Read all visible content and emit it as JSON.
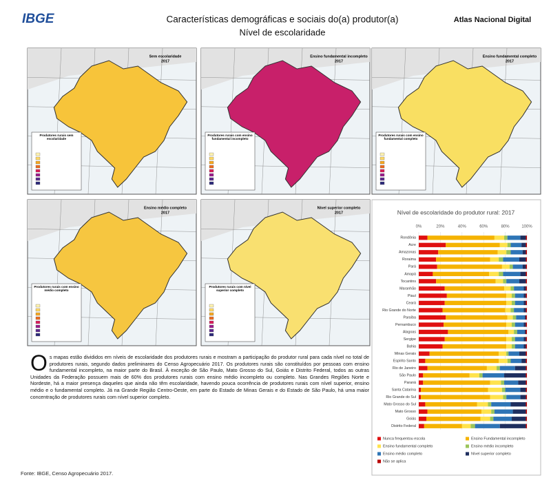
{
  "header": {
    "logo": "IBGE",
    "title": "Características demográficas e sociais do(a) produtor(a)",
    "subtitle": "Nível de escolaridade",
    "brand": "Atlas Nacional Digital"
  },
  "maps": [
    {
      "title": "Sem escolaridade",
      "year": "2017",
      "legend_title": "Produtores rurais sem escolaridade",
      "color": "#f7c43a"
    },
    {
      "title": "Ensino fundamental incompleto",
      "year": "2017",
      "legend_title": "Produtores rurais com ensino fundamental incompleto",
      "color": "#c8206a"
    },
    {
      "title": "Ensino fundamental completo",
      "year": "2017",
      "legend_title": "Produtores rurais com ensino fundamental completo",
      "color": "#f9df62"
    },
    {
      "title": "Ensino médio completo",
      "year": "2017",
      "legend_title": "Produtores rurais com ensino médio completo",
      "color": "#f6c640"
    },
    {
      "title": "Nível superior completo",
      "year": "2017",
      "legend_title": "Produtores rurais com nível superior completo",
      "color": "#f9e070"
    }
  ],
  "text": "Os mapas estão divididos em níveis de escolaridade dos produtores rurais e mostram a participação do produtor rural para cada nível no total de produtores rurais, segundo dados preliminares do Censo Agropecuário 2017. Os produtores rurais são constituídos por pessoas com ensino fundamental incompleto, na maior parte do Brasil. À exceção de São Paulo, Mato Grosso do Sul, Goiás e Distrito Federal, todos as outras Unidades da Federação possuem mais de 60% dos produtores rurais com ensino médio incompleto ou completo. Nas Grandes Regiões Norte e Nordeste, há a maior presença daqueles que ainda não têm escolaridade, havendo pouca ocorrência de produtores rurais com nível superior, ensino médio e o fundamental completo. Já na Grande Região Centro-Oeste, em parte do Estado de Minas Gerais e do Estado de São Paulo, há uma maior concentração de produtores rurais com nível superior completo.",
  "source": "Fonte: IBGE, Censo Agropecuário 2017.",
  "chart_data": {
    "type": "stacked_bar_horizontal",
    "title": "Nível de escolaridade do produtor rural: 2017",
    "categories": [
      "Rondônia",
      "Acre",
      "Amazonas",
      "Roraima",
      "Pará",
      "Amapá",
      "Tocantins",
      "Maranhão",
      "Piauí",
      "Ceará",
      "Rio Grande do Norte",
      "Paraíba",
      "Pernambuco",
      "Alagoas",
      "Sergipe",
      "Bahia",
      "Minas Gerais",
      "Espírito Santo",
      "Rio de Janeiro",
      "São Paulo",
      "Paraná",
      "Santa Catarina",
      "Rio Grande do Sul",
      "Mato Grosso do Sul",
      "Mato Grosso",
      "Goiás",
      "Distrito Federal"
    ],
    "series": [
      {
        "name": "Nunca frequentou escola",
        "color": "#e01010",
        "values": [
          8,
          25,
          18,
          16,
          17,
          13,
          16,
          24,
          26,
          24,
          22,
          25,
          23,
          27,
          24,
          22,
          10,
          6,
          8,
          4,
          4,
          2,
          2,
          6,
          8,
          7,
          5
        ]
      },
      {
        "name": "Ensino Fundamental incompleto",
        "color": "#f5b300",
        "values": [
          62,
          50,
          55,
          50,
          60,
          52,
          55,
          55,
          55,
          57,
          58,
          57,
          58,
          56,
          57,
          59,
          64,
          68,
          55,
          43,
          62,
          62,
          64,
          48,
          50,
          50,
          35
        ]
      },
      {
        "name": "Ensino fundamental completo",
        "color": "#ffe34d",
        "values": [
          9,
          7,
          8,
          8,
          7,
          9,
          7,
          6,
          5,
          5,
          5,
          5,
          5,
          5,
          5,
          5,
          7,
          8,
          9,
          9,
          10,
          13,
          12,
          10,
          9,
          9,
          8
        ]
      },
      {
        "name": "Ensino médio incompleto",
        "color": "#9bc45a",
        "values": [
          3,
          3,
          4,
          4,
          3,
          4,
          3,
          3,
          3,
          3,
          3,
          3,
          3,
          3,
          3,
          3,
          2,
          3,
          3,
          3,
          3,
          3,
          3,
          3,
          3,
          3,
          4
        ]
      },
      {
        "name": "Ensino médio completo",
        "color": "#2e75b6",
        "values": [
          12,
          10,
          11,
          15,
          9,
          16,
          12,
          9,
          8,
          8,
          9,
          8,
          8,
          7,
          8,
          8,
          10,
          10,
          14,
          20,
          13,
          14,
          13,
          18,
          17,
          17,
          23
        ]
      },
      {
        "name": "Nível superior completo",
        "color": "#1f2f5f",
        "values": [
          5,
          4,
          3,
          6,
          3,
          5,
          6,
          2,
          2,
          2,
          2,
          1,
          2,
          1,
          2,
          2,
          6,
          4,
          10,
          20,
          7,
          5,
          5,
          14,
          12,
          13,
          24
        ]
      },
      {
        "name": "Não se aplica",
        "color": "#b80000",
        "values": [
          1,
          1,
          1,
          1,
          1,
          1,
          1,
          1,
          1,
          1,
          1,
          1,
          1,
          1,
          1,
          1,
          1,
          1,
          1,
          1,
          1,
          1,
          1,
          1,
          1,
          1,
          1
        ]
      }
    ],
    "xlim": [
      0,
      100
    ],
    "xticks": [
      {
        "value": 0,
        "label": "0%"
      },
      {
        "value": 20,
        "label": "20%"
      },
      {
        "value": 40,
        "label": "40%"
      },
      {
        "value": 60,
        "label": "60%"
      },
      {
        "value": 80,
        "label": "80%"
      },
      {
        "value": 100,
        "label": "100%"
      }
    ],
    "grid": true
  }
}
